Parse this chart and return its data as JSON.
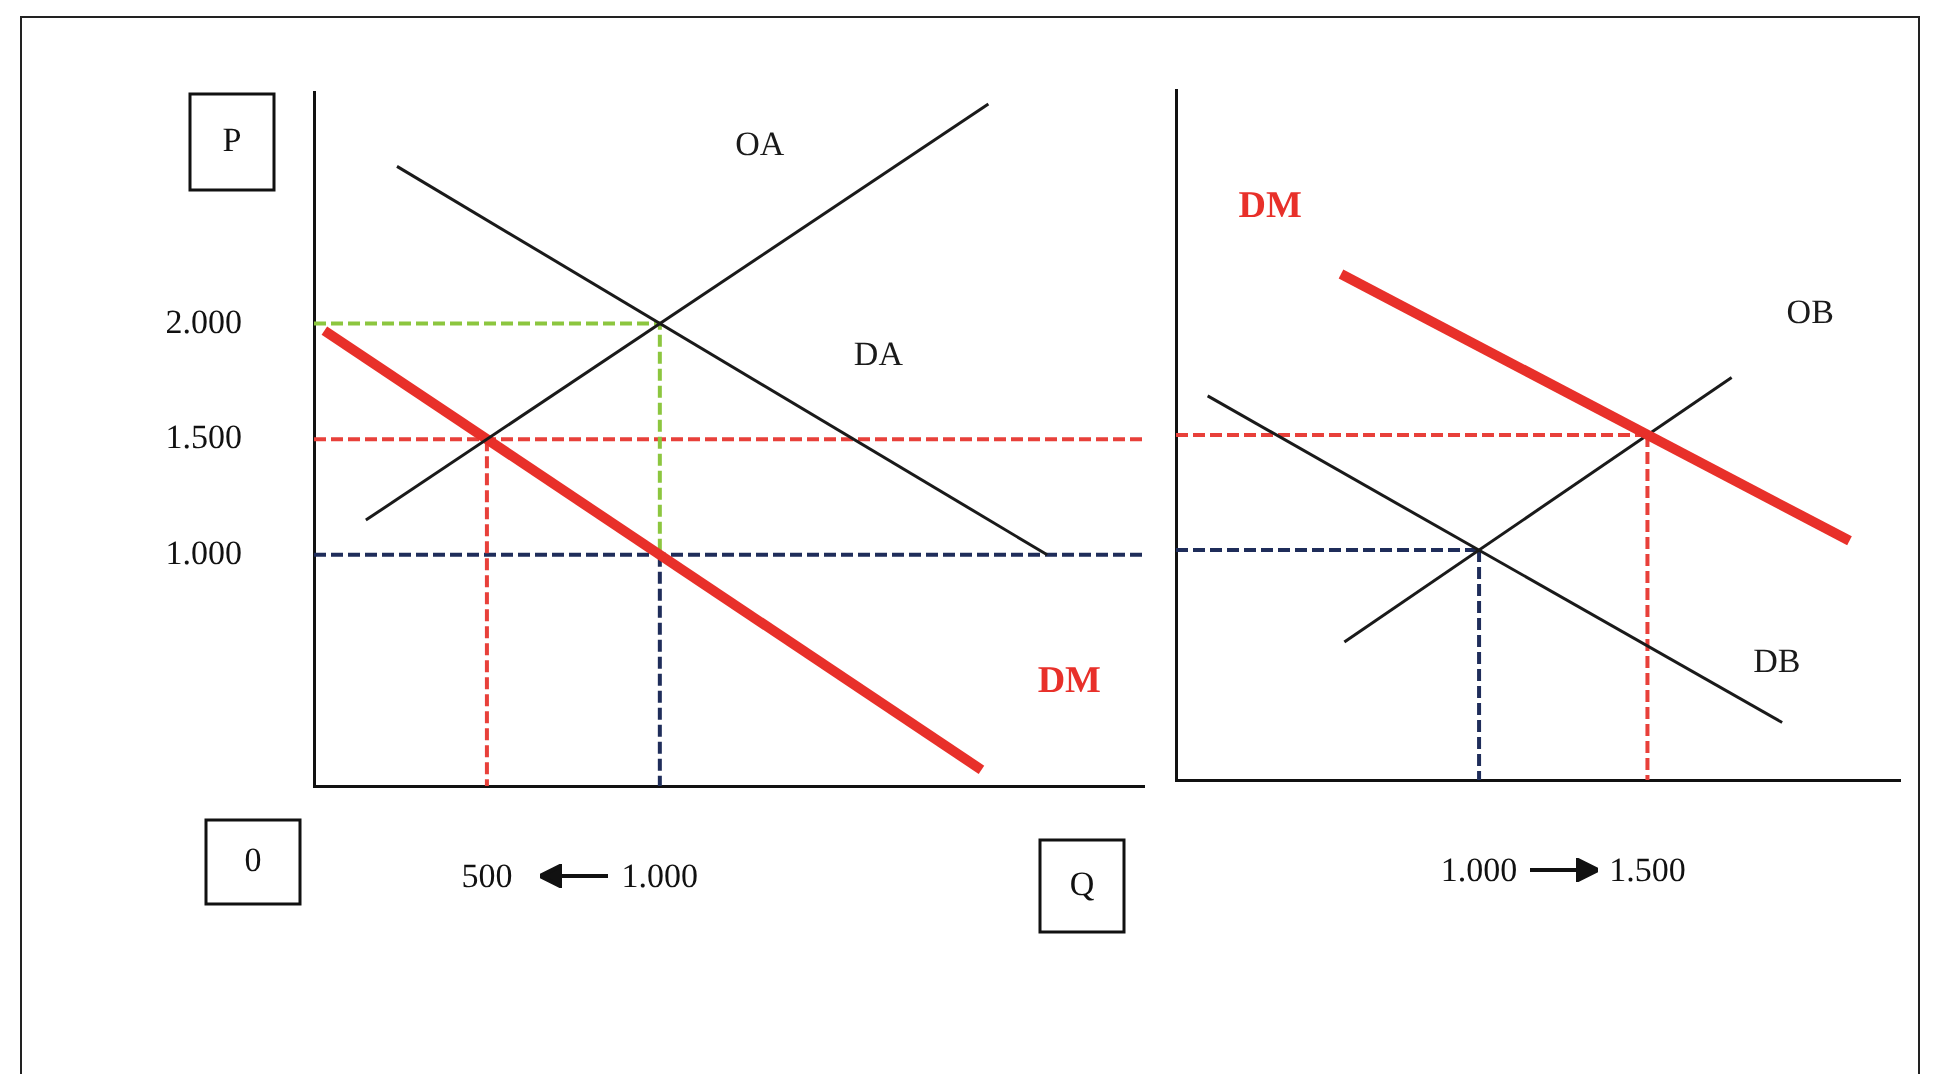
{
  "chart_data": [
    {
      "type": "line",
      "xlabel": "Q",
      "ylabel": "P",
      "annotations": [
        "0"
      ],
      "xlim": [
        0,
        2400
      ],
      "ylim": [
        0,
        3000
      ],
      "xticks": [
        {
          "value": 500,
          "label": "500"
        },
        {
          "value": 1000,
          "label": "1.000"
        }
      ],
      "yticks": [
        {
          "value": 1000,
          "label": "1.000"
        },
        {
          "value": 1500,
          "label": "1.500"
        },
        {
          "value": 2000,
          "label": "2.000"
        }
      ],
      "grid": false,
      "legend": false,
      "marker": "none",
      "series": [
        {
          "name": "OA",
          "color": "#1a1a1a",
          "x": [
            150,
            1950
          ],
          "values": [
            1150,
            2950
          ]
        },
        {
          "name": "DA",
          "color": "#1a1a1a",
          "x": [
            240,
            2120
          ],
          "values": [
            2680,
            1000
          ]
        },
        {
          "name": "DM",
          "color": "#e8302a",
          "x": [
            30,
            1930
          ],
          "values": [
            1970,
            70
          ]
        },
        {
          "color": "#8cc63f",
          "line_style": "dashed",
          "x": [
            0,
            1000,
            1000
          ],
          "values": [
            2000,
            2000,
            1000
          ]
        },
        {
          "color": "#e8403a",
          "line_style": "dashed",
          "x": [
            0,
            2400
          ],
          "values": [
            1500,
            1500
          ]
        },
        {
          "color": "#e8403a",
          "line_style": "dashed",
          "x": [
            500,
            500
          ],
          "values": [
            1500,
            0
          ]
        },
        {
          "color": "#1f2d5a",
          "line_style": "dashed",
          "x": [
            0,
            2400
          ],
          "values": [
            1000,
            1000
          ]
        },
        {
          "color": "#1f2d5a",
          "line_style": "dashed",
          "x": [
            1000,
            1000
          ],
          "values": [
            1000,
            0
          ]
        }
      ]
    },
    {
      "type": "line",
      "xlim": [
        100,
        2250
      ],
      "ylim": [
        0,
        3000
      ],
      "tick_labels": "x",
      "xticks": [
        {
          "value": 1000,
          "label": "1.000"
        },
        {
          "value": 1500,
          "label": "1.500"
        }
      ],
      "grid": false,
      "legend": false,
      "marker": "none",
      "series": [
        {
          "name": "DM",
          "color": "#e8302a",
          "x": [
            590,
            2100
          ],
          "values": [
            2200,
            1040
          ]
        },
        {
          "name": "OB",
          "color": "#1a1a1a",
          "x": [
            600,
            1750
          ],
          "values": [
            600,
            1750
          ]
        },
        {
          "name": "DB",
          "color": "#1a1a1a",
          "x": [
            194,
            1900
          ],
          "values": [
            1670,
            250
          ]
        },
        {
          "color": "#e8403a",
          "line_style": "dashed",
          "x": [
            100,
            1500
          ],
          "values": [
            1500,
            1500
          ]
        },
        {
          "color": "#e8403a",
          "line_style": "dashed",
          "x": [
            1500,
            1500
          ],
          "values": [
            1500,
            0
          ]
        },
        {
          "color": "#1f2d5a",
          "line_style": "dashed",
          "x": [
            100,
            1000
          ],
          "values": [
            1000,
            1000
          ]
        },
        {
          "color": "#1f2d5a",
          "line_style": "dashed",
          "x": [
            1000,
            1000
          ],
          "values": [
            1000,
            0
          ]
        }
      ]
    }
  ]
}
